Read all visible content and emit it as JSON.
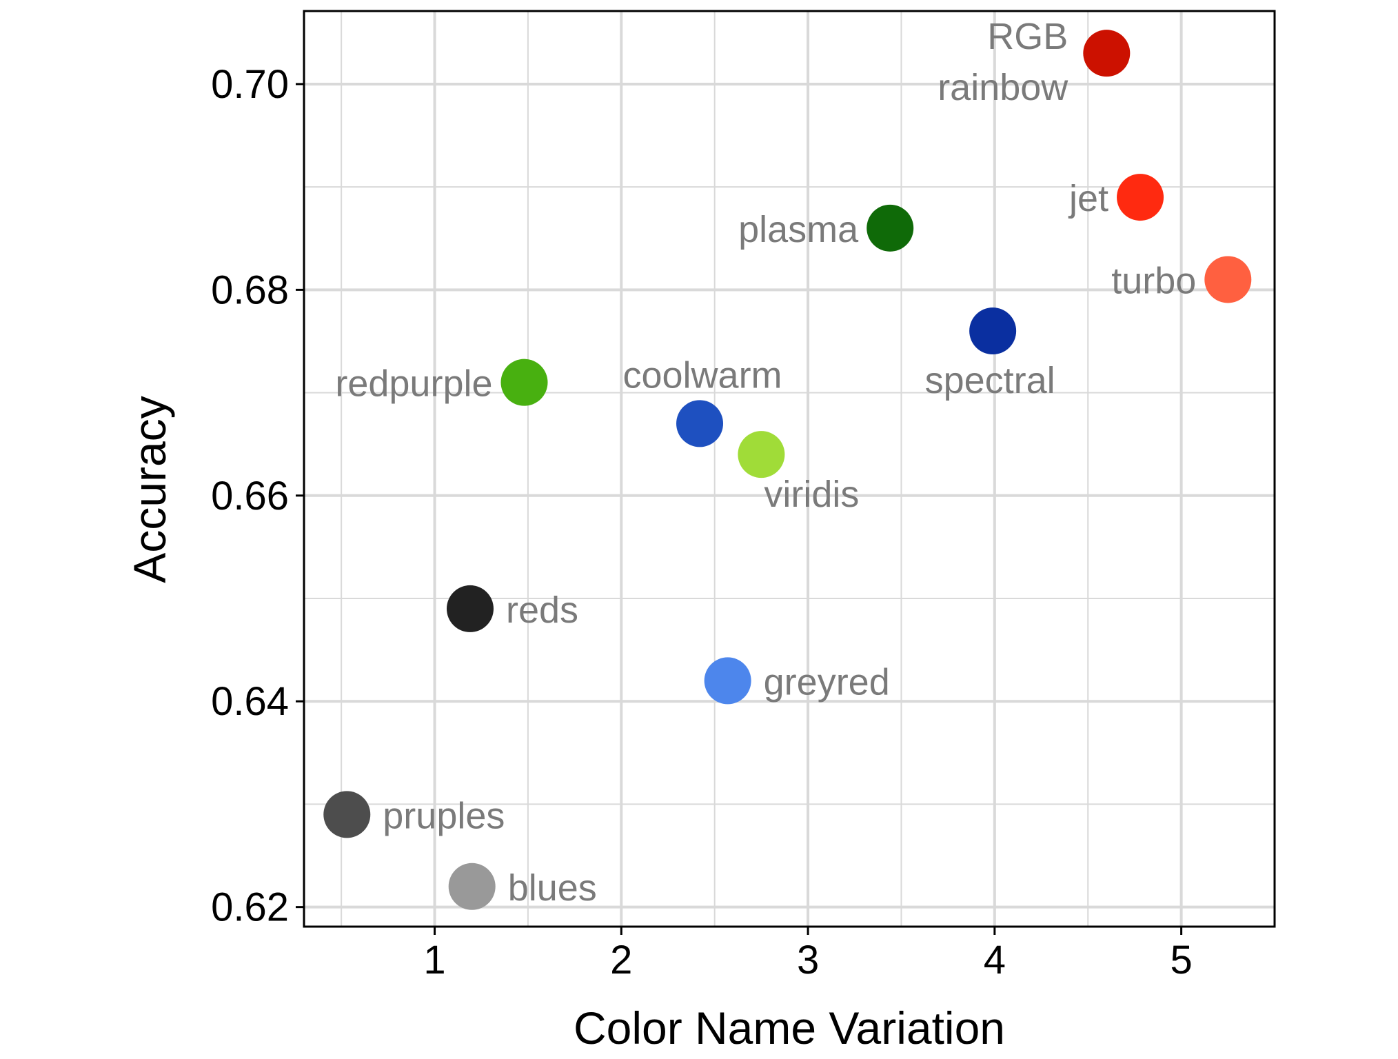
{
  "chart_data": {
    "type": "scatter",
    "title": "",
    "xlabel": "Color Name Variation",
    "ylabel": "Accuracy",
    "xlim": [
      0.3,
      5.5
    ],
    "ylim": [
      0.6181,
      0.7071
    ],
    "x_ticks": [
      {
        "value": 1,
        "label": "1"
      },
      {
        "value": 2,
        "label": "2"
      },
      {
        "value": 3,
        "label": "3"
      },
      {
        "value": 4,
        "label": "4"
      },
      {
        "value": 5,
        "label": "5"
      }
    ],
    "y_ticks": [
      {
        "value": 0.62,
        "label": "0.62"
      },
      {
        "value": 0.64,
        "label": "0.64"
      },
      {
        "value": 0.66,
        "label": "0.66"
      },
      {
        "value": 0.68,
        "label": "0.68"
      },
      {
        "value": 0.7,
        "label": "0.70"
      }
    ],
    "grid": true,
    "legend": "none",
    "points": [
      {
        "name": "RGB",
        "x": 4.6,
        "y": 0.703,
        "color": "#cc1100",
        "label_side": "upper-left"
      },
      {
        "name": "rainbow",
        "x": 4.6,
        "y": 0.703,
        "color": "#cc1100",
        "label_side": "lower-left",
        "shared_marker": true
      },
      {
        "name": "jet",
        "x": 4.78,
        "y": 0.689,
        "color": "#ff2a10",
        "label_side": "left"
      },
      {
        "name": "turbo",
        "x": 5.25,
        "y": 0.681,
        "color": "#ff6040",
        "label_side": "left"
      },
      {
        "name": "plasma",
        "x": 3.44,
        "y": 0.686,
        "color": "#0f6a08",
        "label_side": "left"
      },
      {
        "name": "spectral",
        "x": 3.99,
        "y": 0.676,
        "color": "#0a2fa0",
        "label_side": "below"
      },
      {
        "name": "redpurple",
        "x": 1.48,
        "y": 0.671,
        "color": "#48b010",
        "label_side": "left"
      },
      {
        "name": "coolwarm",
        "x": 2.42,
        "y": 0.667,
        "color": "#1e50c0",
        "label_side": "above"
      },
      {
        "name": "viridis",
        "x": 2.75,
        "y": 0.664,
        "color": "#a0dc38",
        "label_side": "lower-right"
      },
      {
        "name": "reds",
        "x": 1.19,
        "y": 0.649,
        "color": "#222222",
        "label_side": "right"
      },
      {
        "name": "greyred",
        "x": 2.57,
        "y": 0.642,
        "color": "#4d86ec",
        "label_side": "right"
      },
      {
        "name": "pruples",
        "x": 0.53,
        "y": 0.629,
        "color": "#4d4d4d",
        "label_side": "right"
      },
      {
        "name": "blues",
        "x": 1.2,
        "y": 0.622,
        "color": "#999999",
        "label_side": "right"
      }
    ],
    "colors": {
      "grid": "#d9d9d9",
      "frame": "#000000",
      "label": "#7a7a7a"
    }
  }
}
